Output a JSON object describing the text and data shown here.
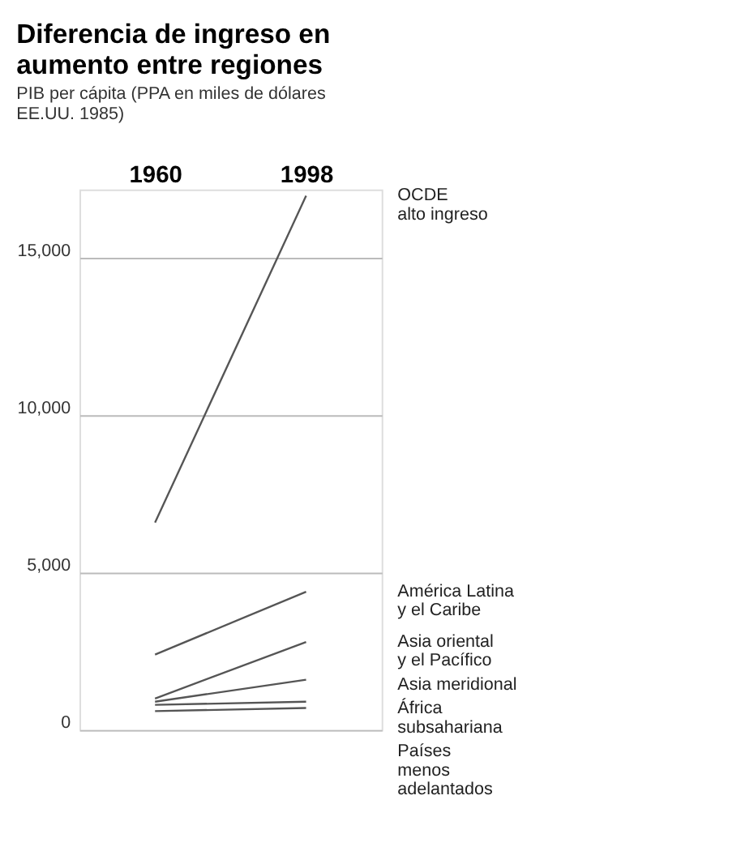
{
  "chart_data": {
    "type": "line",
    "title": [
      "Diferencia de ingreso en",
      "aumento entre regiones"
    ],
    "subtitle": [
      "PIB per cápita (PPA en miles de dólares",
      "EE.UU. 1985)"
    ],
    "categories": [
      "1960",
      "1998"
    ],
    "series": [
      {
        "name": "OCDE\nalto ingreso",
        "color": "#555555",
        "values": [
          6600,
          17000
        ]
      },
      {
        "name": "América Latina\ny el Caribe",
        "color": "#555555",
        "values": [
          2400,
          4400
        ]
      },
      {
        "name": "Asia oriental\ny el Pacífico",
        "color": "#555555",
        "values": [
          1000,
          2800
        ]
      },
      {
        "name": "Asia meridional",
        "color": "#555555",
        "values": [
          900,
          1600
        ]
      },
      {
        "name": "África\nsubsahariana",
        "color": "#555555",
        "values": [
          800,
          900
        ]
      },
      {
        "name": "Países\nmenos\nadelantados",
        "color": "#555555",
        "values": [
          600,
          700
        ]
      }
    ],
    "ylim": [
      0,
      17200
    ],
    "yticks": [
      {
        "value": 0,
        "label": "0"
      },
      {
        "value": 5000,
        "label": "5,000"
      },
      {
        "value": 10000,
        "label": "10,000"
      },
      {
        "value": 15000,
        "label": "15,000"
      }
    ],
    "grid": "y",
    "marker": "none",
    "line_style": "solid",
    "legend": false
  }
}
